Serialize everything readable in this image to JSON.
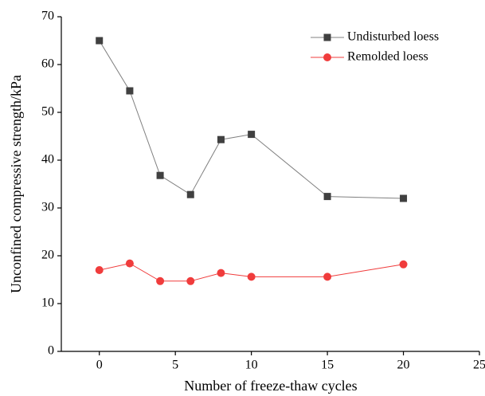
{
  "chart_data": {
    "type": "line",
    "x_label": "Number of freeze-thaw cycles",
    "y_label": "Unconfined compressive strength/kPa",
    "x": [
      0,
      2,
      4,
      6,
      8,
      10,
      15,
      20
    ],
    "series": [
      {
        "name": "Undisturbed loess",
        "color": "#404040",
        "marker": "square",
        "values": [
          65,
          54.5,
          36.8,
          32.8,
          44.3,
          45.4,
          32.4,
          32
        ]
      },
      {
        "name": "Remolded loess",
        "color": "#f03c3c",
        "marker": "circle",
        "values": [
          17,
          18.4,
          14.7,
          14.7,
          16.4,
          15.6,
          15.6,
          18.2
        ]
      }
    ],
    "xlim": [
      -2.5,
      25
    ],
    "xticks": [
      0,
      5,
      10,
      15,
      20,
      25
    ],
    "ylim": [
      0,
      70
    ],
    "yticks": [
      0,
      10,
      20,
      30,
      40,
      50,
      60,
      70
    ],
    "legend": "top-right"
  }
}
